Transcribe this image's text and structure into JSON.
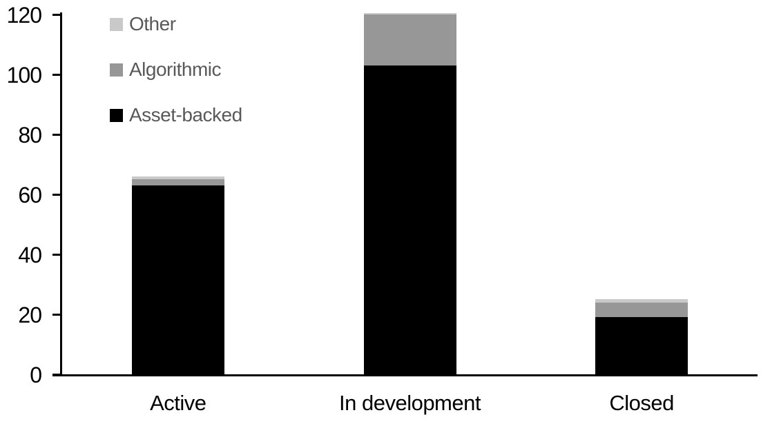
{
  "chart_data": {
    "type": "bar",
    "stacked": true,
    "title": "",
    "xlabel": "",
    "ylabel": "",
    "categories": [
      "Active",
      "In development",
      "Closed"
    ],
    "series": [
      {
        "name": "Asset-backed",
        "color": "#000000",
        "values": [
          63,
          103,
          19
        ]
      },
      {
        "name": "Algorithmic",
        "color": "#979797",
        "values": [
          2,
          17,
          5
        ]
      },
      {
        "name": "Other",
        "color": "#c9c9c9",
        "values": [
          1,
          0.5,
          1
        ]
      }
    ],
    "totals": [
      66,
      120.5,
      25
    ],
    "ylim": [
      0,
      120
    ],
    "yticks": [
      0,
      20,
      40,
      60,
      80,
      100,
      120
    ],
    "grid": false,
    "legend_position": "top-left",
    "legend_order": [
      "Other",
      "Algorithmic",
      "Asset-backed"
    ],
    "colors": {
      "background": "#ffffff",
      "axis": "#000000",
      "tick_labels": "#000000",
      "category_labels": "#000000",
      "legend_text": "#595959"
    }
  }
}
